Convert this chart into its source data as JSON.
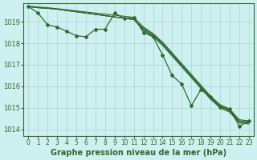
{
  "bg_color": "#cff0f0",
  "grid_color": "#b0d8d8",
  "line_color": "#2d6a2d",
  "title": "Graphe pression niveau de la mer (hPa)",
  "xlim": [
    -0.5,
    23.5
  ],
  "ylim": [
    1013.7,
    1019.85
  ],
  "yticks": [
    1014,
    1015,
    1016,
    1017,
    1018,
    1019
  ],
  "xticks": [
    0,
    1,
    2,
    3,
    4,
    5,
    6,
    7,
    8,
    9,
    10,
    11,
    12,
    13,
    14,
    15,
    16,
    17,
    18,
    19,
    20,
    21,
    22,
    23
  ],
  "series": [
    {
      "y": [
        1019.7,
        1019.65,
        1019.62,
        1019.58,
        1019.52,
        1019.46,
        1019.4,
        1019.34,
        1019.28,
        1019.22,
        1019.16,
        1019.1,
        1018.7,
        1018.4,
        1018.0,
        1017.5,
        1017.0,
        1016.5,
        1016.0,
        1015.5,
        1015.1,
        1014.9,
        1014.4,
        1014.35
      ],
      "linewidth": 0.8,
      "marker": null
    },
    {
      "y": [
        1019.7,
        1019.65,
        1019.62,
        1019.58,
        1019.52,
        1019.46,
        1019.4,
        1019.34,
        1019.28,
        1019.22,
        1019.16,
        1019.1,
        1018.65,
        1018.35,
        1017.95,
        1017.45,
        1016.95,
        1016.45,
        1015.95,
        1015.45,
        1015.05,
        1014.85,
        1014.35,
        1014.3
      ],
      "linewidth": 0.8,
      "marker": null
    },
    {
      "y": [
        1019.7,
        1019.65,
        1019.62,
        1019.58,
        1019.52,
        1019.46,
        1019.4,
        1019.34,
        1019.28,
        1019.22,
        1019.16,
        1019.1,
        1018.6,
        1018.3,
        1017.9,
        1017.4,
        1016.9,
        1016.4,
        1015.9,
        1015.4,
        1015.0,
        1014.8,
        1014.3,
        1014.25
      ],
      "linewidth": 0.8,
      "marker": null
    },
    {
      "y": [
        1019.7,
        1019.4,
        1018.85,
        1018.75,
        1018.55,
        1018.35,
        1018.3,
        1018.65,
        1018.65,
        1019.4,
        1019.15,
        1019.2,
        1018.5,
        1018.3,
        1017.45,
        1016.5,
        1016.1,
        1015.1,
        1015.85,
        1015.5,
        1015.05,
        1014.95,
        1014.15,
        1014.4
      ],
      "linewidth": 0.9,
      "marker": "D"
    },
    {
      "y": [
        1019.72,
        1019.68,
        1019.65,
        1019.6,
        1019.55,
        1019.5,
        1019.45,
        1019.4,
        1019.35,
        1019.3,
        1019.25,
        1019.2,
        1018.75,
        1018.45,
        1018.05,
        1017.55,
        1017.05,
        1016.55,
        1016.05,
        1015.55,
        1015.15,
        1014.95,
        1014.45,
        1014.4
      ],
      "linewidth": 0.8,
      "marker": null
    }
  ]
}
